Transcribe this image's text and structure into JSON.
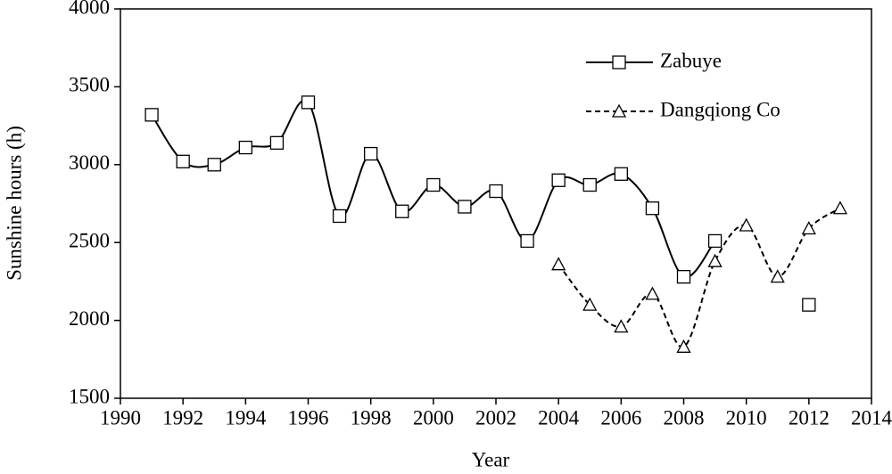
{
  "chart_data": {
    "type": "line",
    "x_label": "Year",
    "y_label": "Sunshine hours (h)",
    "x": [
      1991,
      1992,
      1993,
      1994,
      1995,
      1996,
      1997,
      1998,
      1999,
      2000,
      2001,
      2002,
      2003,
      2004,
      2005,
      2006,
      2007,
      2008,
      2009,
      2010,
      2011,
      2012,
      2013
    ],
    "series": [
      {
        "name": "Zabuye",
        "color": "#000000",
        "marker": "square",
        "dashed": false,
        "values": [
          3320,
          3020,
          3000,
          3110,
          3140,
          3400,
          2670,
          3070,
          2700,
          2870,
          2730,
          2830,
          2510,
          2900,
          2870,
          2940,
          2720,
          2280,
          2510,
          null,
          null,
          2100,
          null
        ]
      },
      {
        "name": "Dangqiong Co",
        "color": "#000000",
        "marker": "triangle",
        "dashed": true,
        "values": [
          null,
          null,
          null,
          null,
          null,
          null,
          null,
          null,
          null,
          null,
          null,
          null,
          null,
          2360,
          2100,
          1960,
          2170,
          1830,
          2380,
          2610,
          2280,
          2590,
          2720
        ]
      }
    ],
    "xlim": [
      1990,
      2014
    ],
    "xticks": [
      1990,
      1992,
      1994,
      1996,
      1998,
      2000,
      2002,
      2004,
      2006,
      2008,
      2010,
      2012,
      2014
    ],
    "ylim": [
      1500,
      4000
    ],
    "yticks": [
      1500,
      2000,
      2500,
      3000,
      3500,
      4000
    ],
    "smooth": true,
    "legend": "top-right"
  }
}
